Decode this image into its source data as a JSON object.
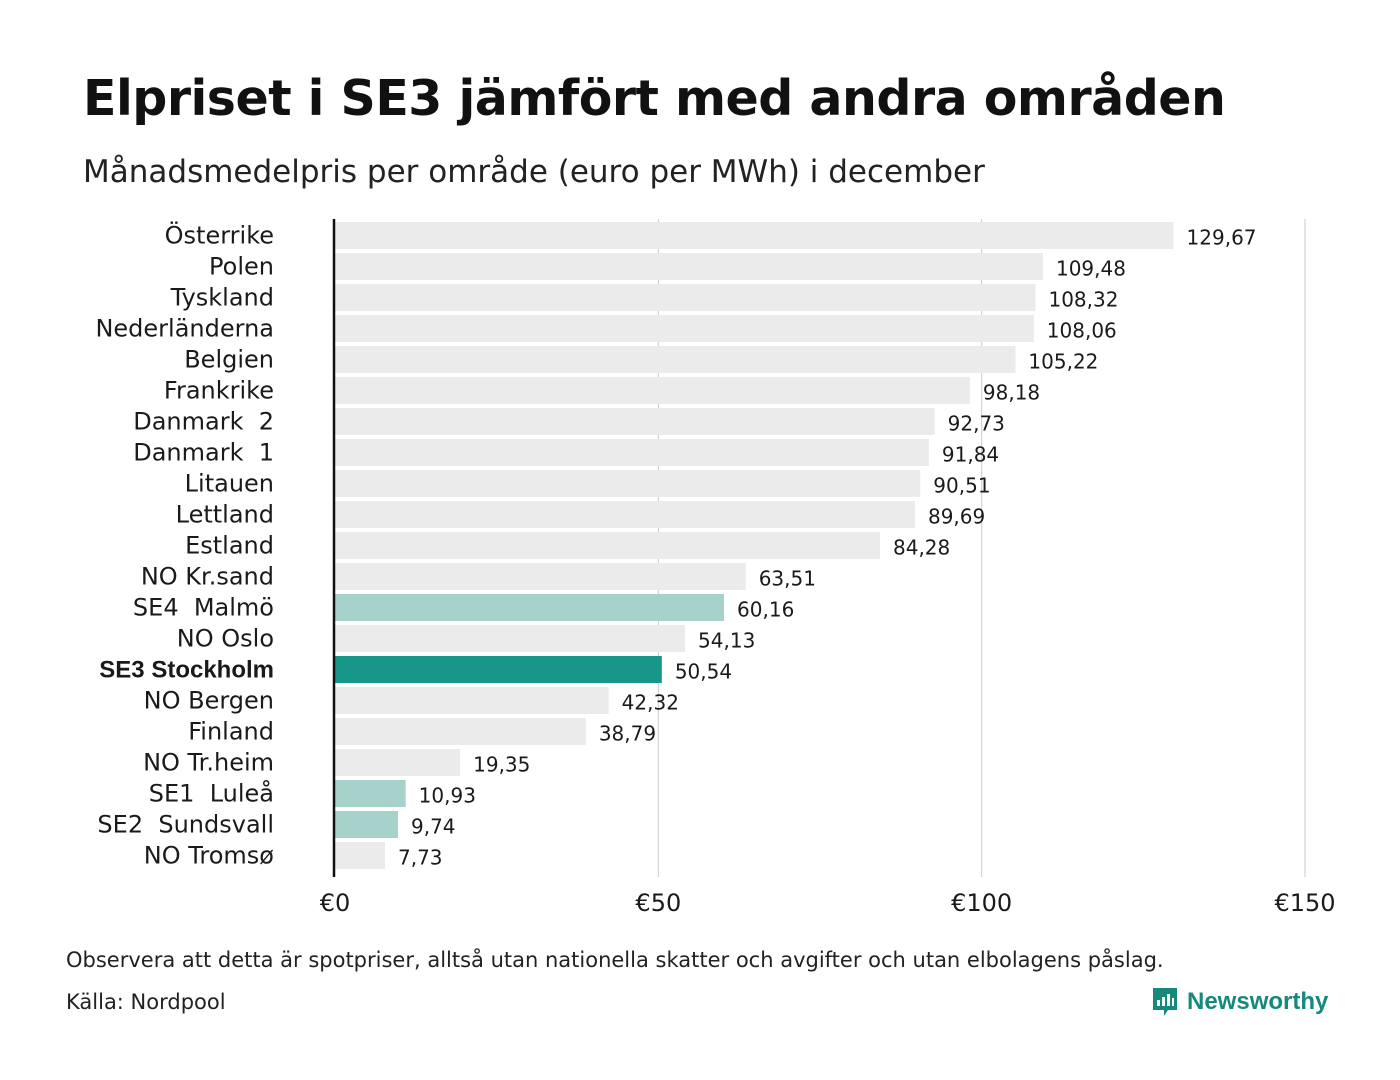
{
  "header": {
    "title": "Elpriset i SE3 jämfört med andra områden",
    "subtitle": "Månadsmedelpris per område (euro per MWh) i december"
  },
  "footer": {
    "note": "Observera att detta är spotpriser, alltså utan nationella skatter och avgifter och utan elbolagens påslag.",
    "source": "Källa: Nordpool",
    "brand": "Newsworthy",
    "brand_icon": "bar-chart-speech-bubble-icon"
  },
  "colors": {
    "default_bar": "#ebebeb",
    "swedish_area_bar": "#a7d1cb",
    "highlight_bar": "#17968a",
    "grid": "#cccccc",
    "axis": "#111111"
  },
  "chart_data": {
    "type": "bar",
    "orientation": "horizontal",
    "title": "Elpriset i SE3 jämfört med andra områden",
    "subtitle": "Månadsmedelpris per område (euro per MWh) i december",
    "xlim": [
      0,
      150
    ],
    "xticks": [
      0,
      50,
      100,
      150
    ],
    "xtick_labels": [
      "€0",
      "€50",
      "€100",
      "€150"
    ],
    "grid": true,
    "categories": [
      "Österrike",
      "Polen",
      "Tyskland",
      "Nederländerna",
      "Belgien",
      "Frankrike",
      "Danmark  2",
      "Danmark  1",
      "Litauen",
      "Lettland",
      "Estland",
      "NO Kr.sand",
      "SE4  Malmö",
      "NO Oslo",
      "SE3 Stockholm",
      "NO Bergen",
      "Finland",
      "NO Tr.heim",
      "SE1  Luleå",
      "SE2  Sundsvall",
      "NO Tromsø"
    ],
    "values": [
      129.67,
      109.48,
      108.32,
      108.06,
      105.22,
      98.18,
      92.73,
      91.84,
      90.51,
      89.69,
      84.28,
      63.51,
      60.16,
      54.13,
      50.54,
      42.32,
      38.79,
      19.35,
      10.93,
      9.74,
      7.73
    ],
    "value_labels": [
      "129,67",
      "109,48",
      "108,32",
      "108,06",
      "105,22",
      "98,18",
      "92,73",
      "91,84",
      "90,51",
      "89,69",
      "84,28",
      "63,51",
      "60,16",
      "54,13",
      "50,54",
      "42,32",
      "38,79",
      "19,35",
      "10,93",
      "9,74",
      "7,73"
    ],
    "bar_style": [
      "default",
      "default",
      "default",
      "default",
      "default",
      "default",
      "default",
      "default",
      "default",
      "default",
      "default",
      "default",
      "swedish",
      "default",
      "highlight",
      "default",
      "default",
      "default",
      "swedish",
      "swedish",
      "default"
    ]
  }
}
